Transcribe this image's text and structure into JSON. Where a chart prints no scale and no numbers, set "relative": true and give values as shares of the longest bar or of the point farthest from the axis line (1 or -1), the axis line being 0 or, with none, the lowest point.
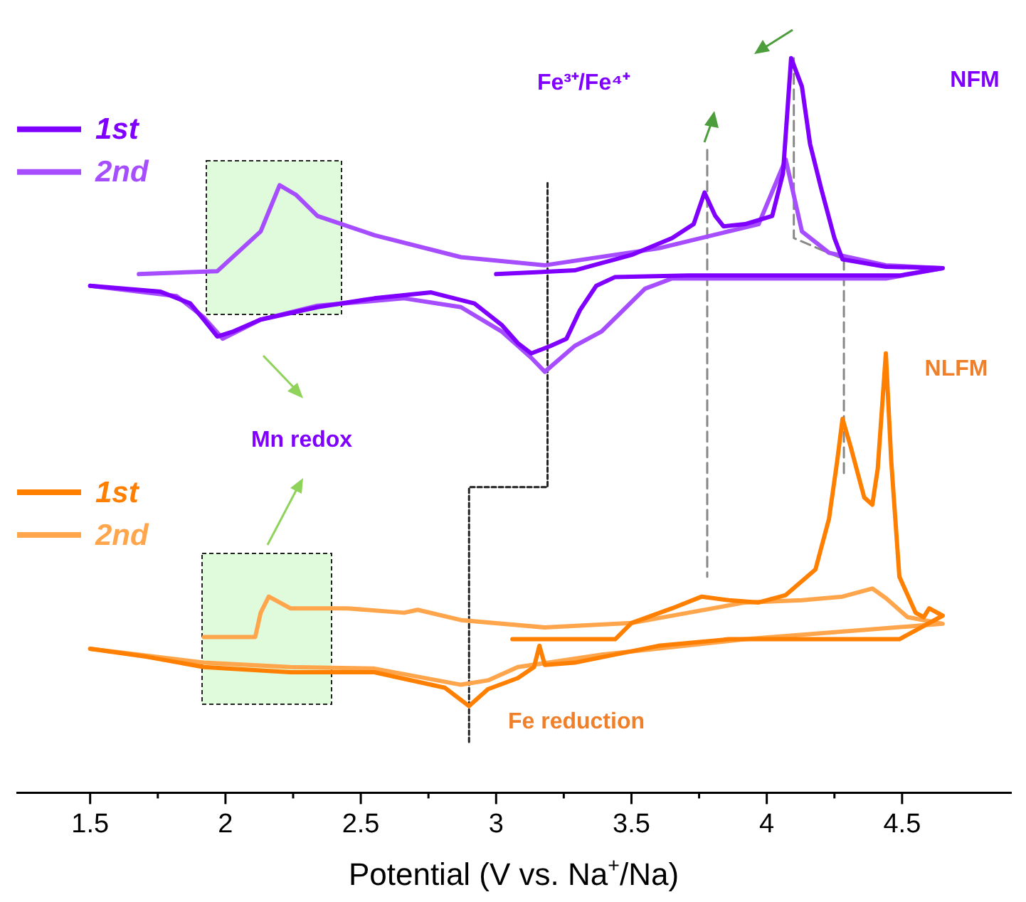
{
  "chart_data": {
    "type": "line",
    "relative": true,
    "xlabel": "Potential (V vs. Na$^{+}$/Na)",
    "xlim": [
      1.23,
      4.9
    ],
    "xticks": [
      1.5,
      2,
      2.5,
      3,
      3.5,
      4,
      4.5
    ],
    "grid": false,
    "legend": "left",
    "marker": "none",
    "line_style": "solid",
    "annotations": [
      "NFM",
      "NLFM",
      "Fe³⁺/Fe⁴⁺",
      "Mn redox",
      "Fe reduction"
    ],
    "series": [
      {
        "name": "1st",
        "color": "#8000ff",
        "x": [
          3.0,
          3.29,
          3.5,
          3.65,
          3.73,
          3.77,
          3.81,
          3.84,
          3.92,
          4.02,
          4.06,
          4.09,
          4.13,
          4.16,
          4.2,
          4.25,
          4.28,
          4.44,
          4.65,
          4.49,
          3.71,
          3.44,
          3.37,
          3.31,
          3.26,
          3.2,
          3.13,
          3.08,
          3.02,
          2.92,
          2.76,
          2.55,
          2.34,
          2.13,
          2.03,
          1.97,
          1.92,
          1.87,
          1.76,
          1.5
        ],
        "values": [
          0.706,
          0.711,
          0.732,
          0.755,
          0.774,
          0.817,
          0.785,
          0.771,
          0.774,
          0.785,
          0.843,
          1.0,
          0.961,
          0.883,
          0.824,
          0.755,
          0.726,
          0.716,
          0.714,
          0.704,
          0.704,
          0.702,
          0.69,
          0.657,
          0.618,
          0.608,
          0.598,
          0.612,
          0.637,
          0.666,
          0.681,
          0.673,
          0.661,
          0.644,
          0.628,
          0.621,
          0.644,
          0.666,
          0.682,
          0.69
        ]
      },
      {
        "name": "2nd",
        "color": "#a64dff",
        "x": [
          1.68,
          1.97,
          2.13,
          2.2,
          2.26,
          2.34,
          2.55,
          2.87,
          3.18,
          3.6,
          3.97,
          4.07,
          4.13,
          4.23,
          4.44,
          4.65,
          4.44,
          3.65,
          3.55,
          3.47,
          3.39,
          3.29,
          3.18,
          3.13,
          3.02,
          2.87,
          2.66,
          2.34,
          2.13,
          1.99,
          1.92,
          1.82,
          1.5
        ],
        "values": [
          0.706,
          0.71,
          0.764,
          0.827,
          0.814,
          0.785,
          0.759,
          0.729,
          0.718,
          0.741,
          0.774,
          0.862,
          0.764,
          0.735,
          0.718,
          0.714,
          0.7,
          0.7,
          0.686,
          0.657,
          0.628,
          0.608,
          0.573,
          0.592,
          0.628,
          0.661,
          0.673,
          0.663,
          0.644,
          0.618,
          0.647,
          0.676,
          0.69
        ]
      },
      {
        "name": "1st",
        "color": "#ff7f00",
        "x": [
          3.06,
          3.44,
          3.5,
          3.65,
          3.76,
          3.86,
          3.97,
          4.07,
          4.18,
          4.23,
          4.26,
          4.28,
          4.31,
          4.36,
          4.39,
          4.41,
          4.44,
          4.46,
          4.49,
          4.55,
          4.58,
          4.6,
          4.65,
          4.49,
          3.86,
          3.6,
          3.29,
          3.18,
          3.16,
          3.14,
          3.08,
          2.97,
          2.9,
          2.81,
          2.55,
          2.24,
          1.92,
          1.71,
          1.5
        ],
        "values": [
          0.209,
          0.209,
          0.231,
          0.251,
          0.267,
          0.262,
          0.259,
          0.269,
          0.304,
          0.373,
          0.451,
          0.509,
          0.471,
          0.402,
          0.392,
          0.441,
          0.598,
          0.451,
          0.294,
          0.245,
          0.239,
          0.251,
          0.241,
          0.209,
          0.209,
          0.2,
          0.177,
          0.174,
          0.2,
          0.171,
          0.156,
          0.141,
          0.118,
          0.143,
          0.164,
          0.164,
          0.171,
          0.185,
          0.196
        ]
      },
      {
        "name": "2nd",
        "color": "#ffa64d",
        "x": [
          1.92,
          2.11,
          2.13,
          2.16,
          2.24,
          2.45,
          2.66,
          2.71,
          2.87,
          3.18,
          3.5,
          3.71,
          3.92,
          4.13,
          4.28,
          4.39,
          4.44,
          4.52,
          4.65,
          3.92,
          3.39,
          3.08,
          2.97,
          2.87,
          2.55,
          2.24,
          1.92,
          1.5
        ],
        "values": [
          0.212,
          0.212,
          0.245,
          0.267,
          0.251,
          0.251,
          0.245,
          0.249,
          0.235,
          0.225,
          0.231,
          0.245,
          0.259,
          0.262,
          0.267,
          0.278,
          0.265,
          0.239,
          0.23,
          0.209,
          0.188,
          0.171,
          0.153,
          0.147,
          0.169,
          0.171,
          0.177,
          0.196
        ]
      },
      {
        "type": "line",
        "color": "#222222",
        "line_style": "dotted",
        "x": [
          3.19,
          3.19,
          2.9,
          2.9
        ],
        "values": [
          0.83,
          0.416,
          0.416,
          0.069
        ]
      },
      {
        "type": "line",
        "color": "#888888",
        "line_style": "dashed",
        "x": [
          3.78,
          3.78
        ],
        "values": [
          0.875,
          0.294
        ]
      },
      {
        "type": "line",
        "color": "#888888",
        "line_style": "dashed",
        "x": [
          4.1,
          4.1,
          4.285,
          4.285
        ],
        "values": [
          1.0,
          0.755,
          0.726,
          0.432
        ]
      }
    ]
  }
}
